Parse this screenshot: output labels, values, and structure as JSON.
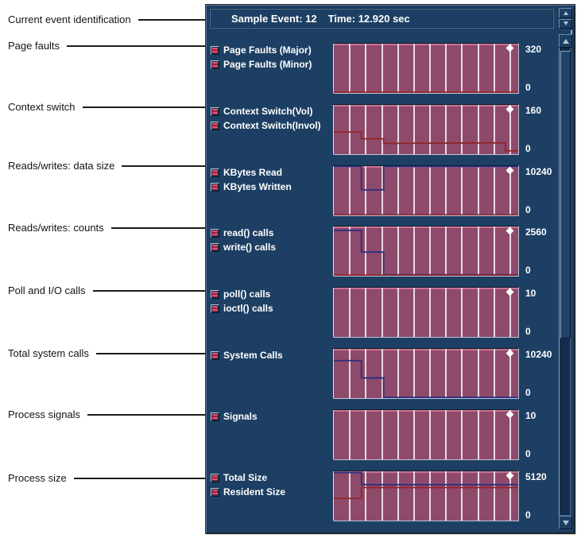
{
  "left_labels": [
    "Current event identification",
    "Page faults",
    "Context switch",
    "Reads/writes: data size",
    "Reads/writes: counts",
    "Poll and I/O calls",
    "Total system calls",
    "Process signals",
    "Process size"
  ],
  "titlebar": {
    "sample_event": "Sample Event: 12",
    "time": "Time: 12.920 sec"
  },
  "colors": {
    "panel_bg": "#1d3f63",
    "chart_fill": "#8e4a6b",
    "chart_top_edge": "#c9728f",
    "gridline": "#ead9e0",
    "trace_red": "#92262a",
    "trace_blue": "#2b3080",
    "text": "#ffffff"
  },
  "chart_data": [
    {
      "type": "area",
      "legend": [
        "Page Faults (Major)",
        "Page Faults (Minor)"
      ],
      "ylim": [
        0,
        320
      ],
      "ymax_label": "320",
      "ymin_label": "0",
      "grid": "vertical",
      "marker": "diamond-top-right",
      "series": [
        {
          "name": "Page Faults (Minor)",
          "color": "red",
          "points": [
            [
              0,
              6
            ],
            [
              100,
              6
            ]
          ]
        }
      ]
    },
    {
      "type": "area",
      "legend": [
        "Context Switch(Vol)",
        "Context Switch(Invol)"
      ],
      "ylim": [
        0,
        160
      ],
      "ymax_label": "160",
      "ymin_label": "0",
      "grid": "vertical",
      "marker": "diamond-top-right",
      "series": [
        {
          "name": "Context Switch(Invol)",
          "color": "red",
          "points": [
            [
              0,
              72
            ],
            [
              15,
              72
            ],
            [
              15,
              50
            ],
            [
              27,
              50
            ],
            [
              27,
              35
            ],
            [
              93,
              37
            ],
            [
              93,
              11
            ],
            [
              100,
              11
            ]
          ]
        }
      ]
    },
    {
      "type": "area",
      "legend": [
        "KBytes Read",
        "KBytes Written"
      ],
      "ylim": [
        0,
        10240
      ],
      "ymax_label": "10240",
      "ymin_label": "0",
      "grid": "vertical",
      "marker": "diamond-top-right",
      "series": [
        {
          "name": "KBytes Read",
          "color": "blue",
          "points": [
            [
              0,
              10140
            ],
            [
              15,
              10140
            ],
            [
              15,
              5300
            ],
            [
              27,
              5300
            ],
            [
              27,
              10140
            ],
            [
              100,
              10140
            ]
          ]
        },
        {
          "name": "KBytes Written",
          "color": "red",
          "points": [
            [
              0,
              100
            ],
            [
              100,
              100
            ]
          ]
        }
      ]
    },
    {
      "type": "area",
      "legend": [
        "read() calls",
        "write() calls"
      ],
      "ylim": [
        0,
        2560
      ],
      "ymax_label": "2560",
      "ymin_label": "0",
      "grid": "vertical",
      "marker": "diamond-top-right",
      "series": [
        {
          "name": "read() calls",
          "color": "blue",
          "points": [
            [
              0,
              2360
            ],
            [
              15,
              2360
            ],
            [
              15,
              1230
            ],
            [
              27,
              1230
            ],
            [
              27,
              50
            ],
            [
              100,
              50
            ]
          ]
        },
        {
          "name": "write() calls",
          "color": "red",
          "points": [
            [
              0,
              30
            ],
            [
              100,
              30
            ]
          ]
        }
      ]
    },
    {
      "type": "area",
      "legend": [
        "poll() calls",
        "ioctl() calls"
      ],
      "ylim": [
        0,
        10
      ],
      "ymax_label": "10",
      "ymin_label": "0",
      "grid": "vertical",
      "marker": "diamond-top-right",
      "series": []
    },
    {
      "type": "area",
      "legend": [
        "System Calls"
      ],
      "ylim": [
        0,
        10240
      ],
      "ymax_label": "10240",
      "ymin_label": "0",
      "grid": "vertical",
      "marker": "diamond-top-right",
      "series": [
        {
          "name": "System Calls",
          "color": "blue",
          "points": [
            [
              0,
              7800
            ],
            [
              15,
              7800
            ],
            [
              15,
              4200
            ],
            [
              27,
              4200
            ],
            [
              27,
              150
            ],
            [
              100,
              150
            ]
          ]
        }
      ]
    },
    {
      "type": "area",
      "legend": [
        "Signals"
      ],
      "ylim": [
        0,
        10
      ],
      "ymax_label": "10",
      "ymin_label": "0",
      "grid": "vertical",
      "marker": "diamond-top-right",
      "series": []
    },
    {
      "type": "area",
      "legend": [
        "Total Size",
        "Resident Size"
      ],
      "ylim": [
        0,
        5120
      ],
      "ymax_label": "5120",
      "ymin_label": "0",
      "grid": "vertical",
      "marker": "diamond-top-right",
      "series": [
        {
          "name": "Total Size",
          "color": "blue",
          "points": [
            [
              0,
              4990
            ],
            [
              15,
              4990
            ],
            [
              15,
              3730
            ],
            [
              100,
              3730
            ]
          ]
        },
        {
          "name": "Resident Size",
          "color": "red",
          "points": [
            [
              0,
              2300
            ],
            [
              15,
              2300
            ],
            [
              15,
              3430
            ],
            [
              100,
              3430
            ]
          ]
        }
      ]
    }
  ]
}
